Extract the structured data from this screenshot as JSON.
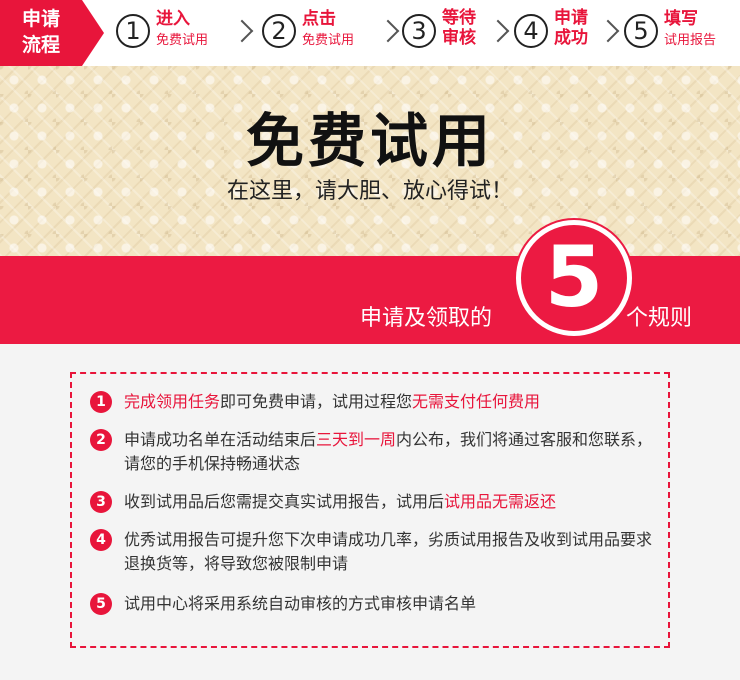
{
  "stepbar": {
    "tag_line1": "申请",
    "tag_line2": "流程",
    "steps": [
      {
        "num": "1",
        "title": "进入",
        "sub": "免费试用"
      },
      {
        "num": "2",
        "title": "点击",
        "sub": "免费试用"
      },
      {
        "num": "3",
        "title_line1": "等待",
        "title_line2": "审核"
      },
      {
        "num": "4",
        "title_line1": "申请",
        "title_line2": "成功"
      },
      {
        "num": "5",
        "title": "填写",
        "sub": "试用报告"
      }
    ]
  },
  "hero": {
    "title": "免费试用",
    "subtitle": "在这里，请大胆、放心得试！"
  },
  "banner": {
    "left_text": "申请及领取的",
    "badge_number": "5",
    "right_text": "个规则"
  },
  "rules": [
    {
      "num": "1",
      "parts": [
        {
          "t": "完成领用任务",
          "hl": true
        },
        {
          "t": "即可免费申请，试用过程您",
          "hl": false
        },
        {
          "t": "无需支付任何费用",
          "hl": true
        }
      ]
    },
    {
      "num": "2",
      "parts": [
        {
          "t": "申请成功名单在活动结束后",
          "hl": false
        },
        {
          "t": "三天到一周",
          "hl": true
        },
        {
          "t": "内公布，我们将通过客服和您联系，请您的手机保持畅通状态",
          "hl": false
        }
      ]
    },
    {
      "num": "3",
      "parts": [
        {
          "t": "收到试用品后您需提交真实试用报告，试用后",
          "hl": false
        },
        {
          "t": "试用品无需返还",
          "hl": true
        }
      ]
    },
    {
      "num": "4",
      "parts": [
        {
          "t": "优秀试用报告可提升您下次申请成功几率，劣质试用报告及收到试用品要求退换货等，将导致您被限制申请",
          "hl": false
        }
      ]
    },
    {
      "num": "5",
      "parts": [
        {
          "t": "试用中心将采用系统自动审核的方式审核申请名单",
          "hl": false
        }
      ]
    }
  ],
  "colors": {
    "accent": "#e8153b",
    "hero_bg": "#f3e5c4",
    "page_bg": "#f4f4f4"
  }
}
